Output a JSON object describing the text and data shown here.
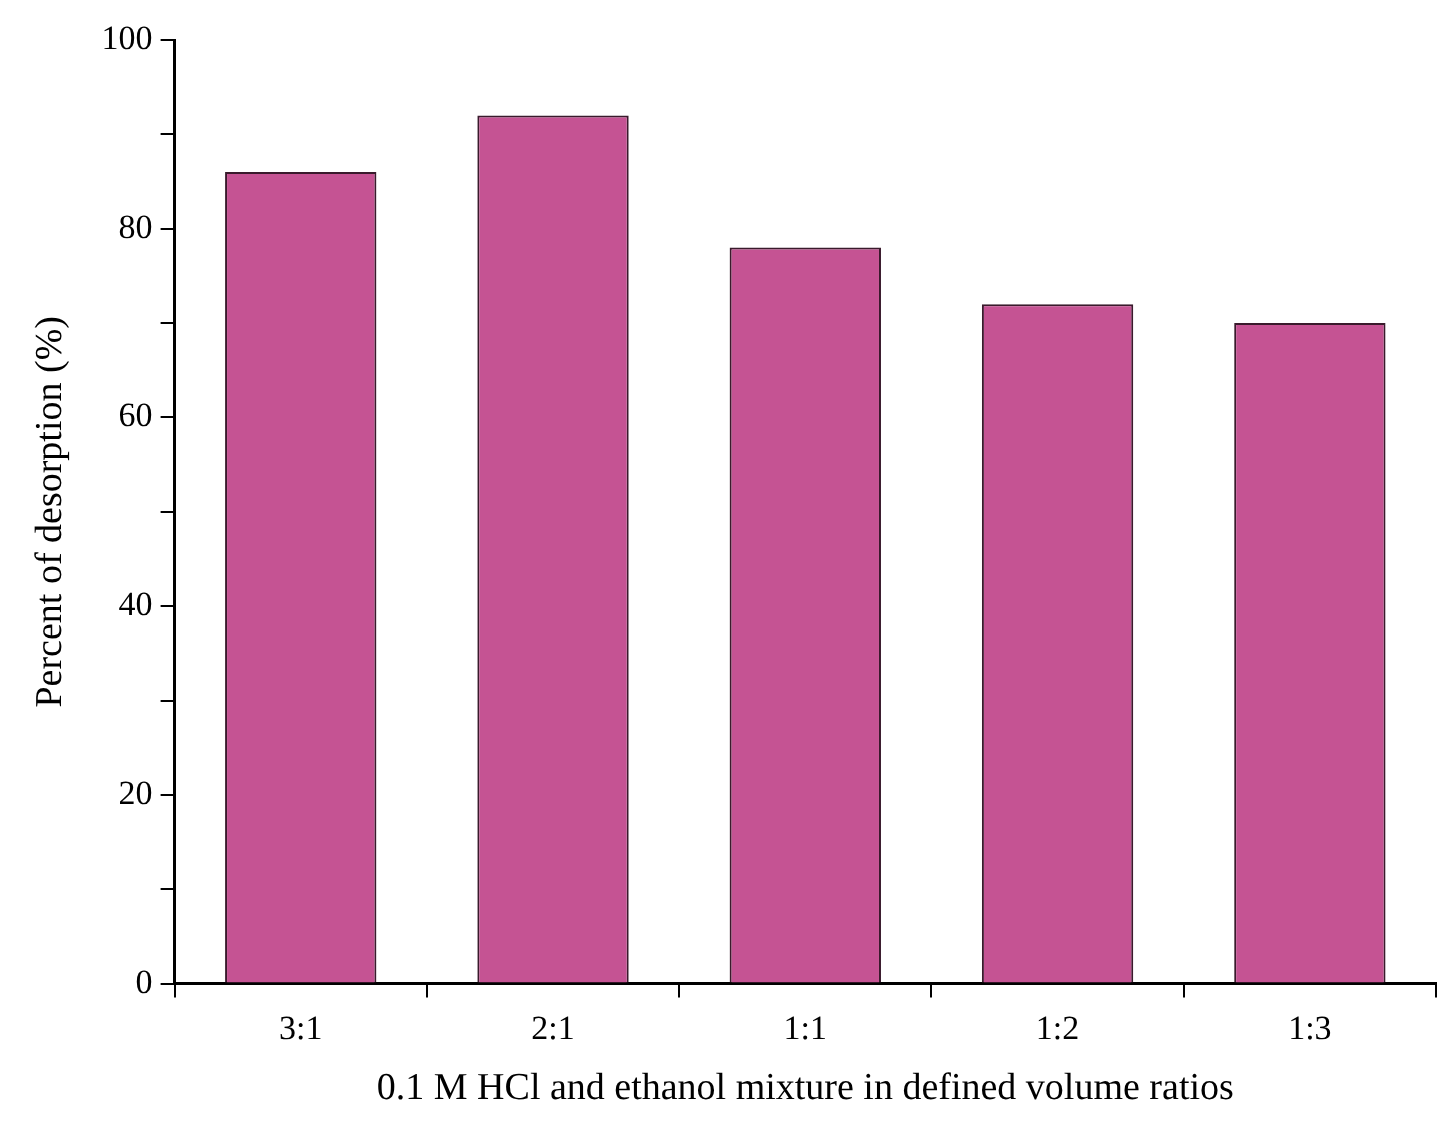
{
  "chart_data": {
    "type": "bar",
    "xlabel": "0.1 M HCl and ethanol mixture in defined volume ratios",
    "ylabel": "Percent of desorption (%)",
    "categories": [
      "3:1",
      "2:1",
      "1:1",
      "1:2",
      "1:3"
    ],
    "values": [
      86,
      92,
      78,
      72,
      70
    ],
    "color": "#c55393",
    "ylim": [
      0,
      100
    ],
    "yticks": [
      0,
      {
        "value": 10,
        "label": null
      },
      20,
      {
        "value": 30,
        "label": null
      },
      40,
      {
        "value": 50,
        "label": null
      },
      60,
      {
        "value": 70,
        "label": null
      },
      80,
      {
        "value": 90,
        "label": null
      },
      100
    ],
    "legend": false
  }
}
